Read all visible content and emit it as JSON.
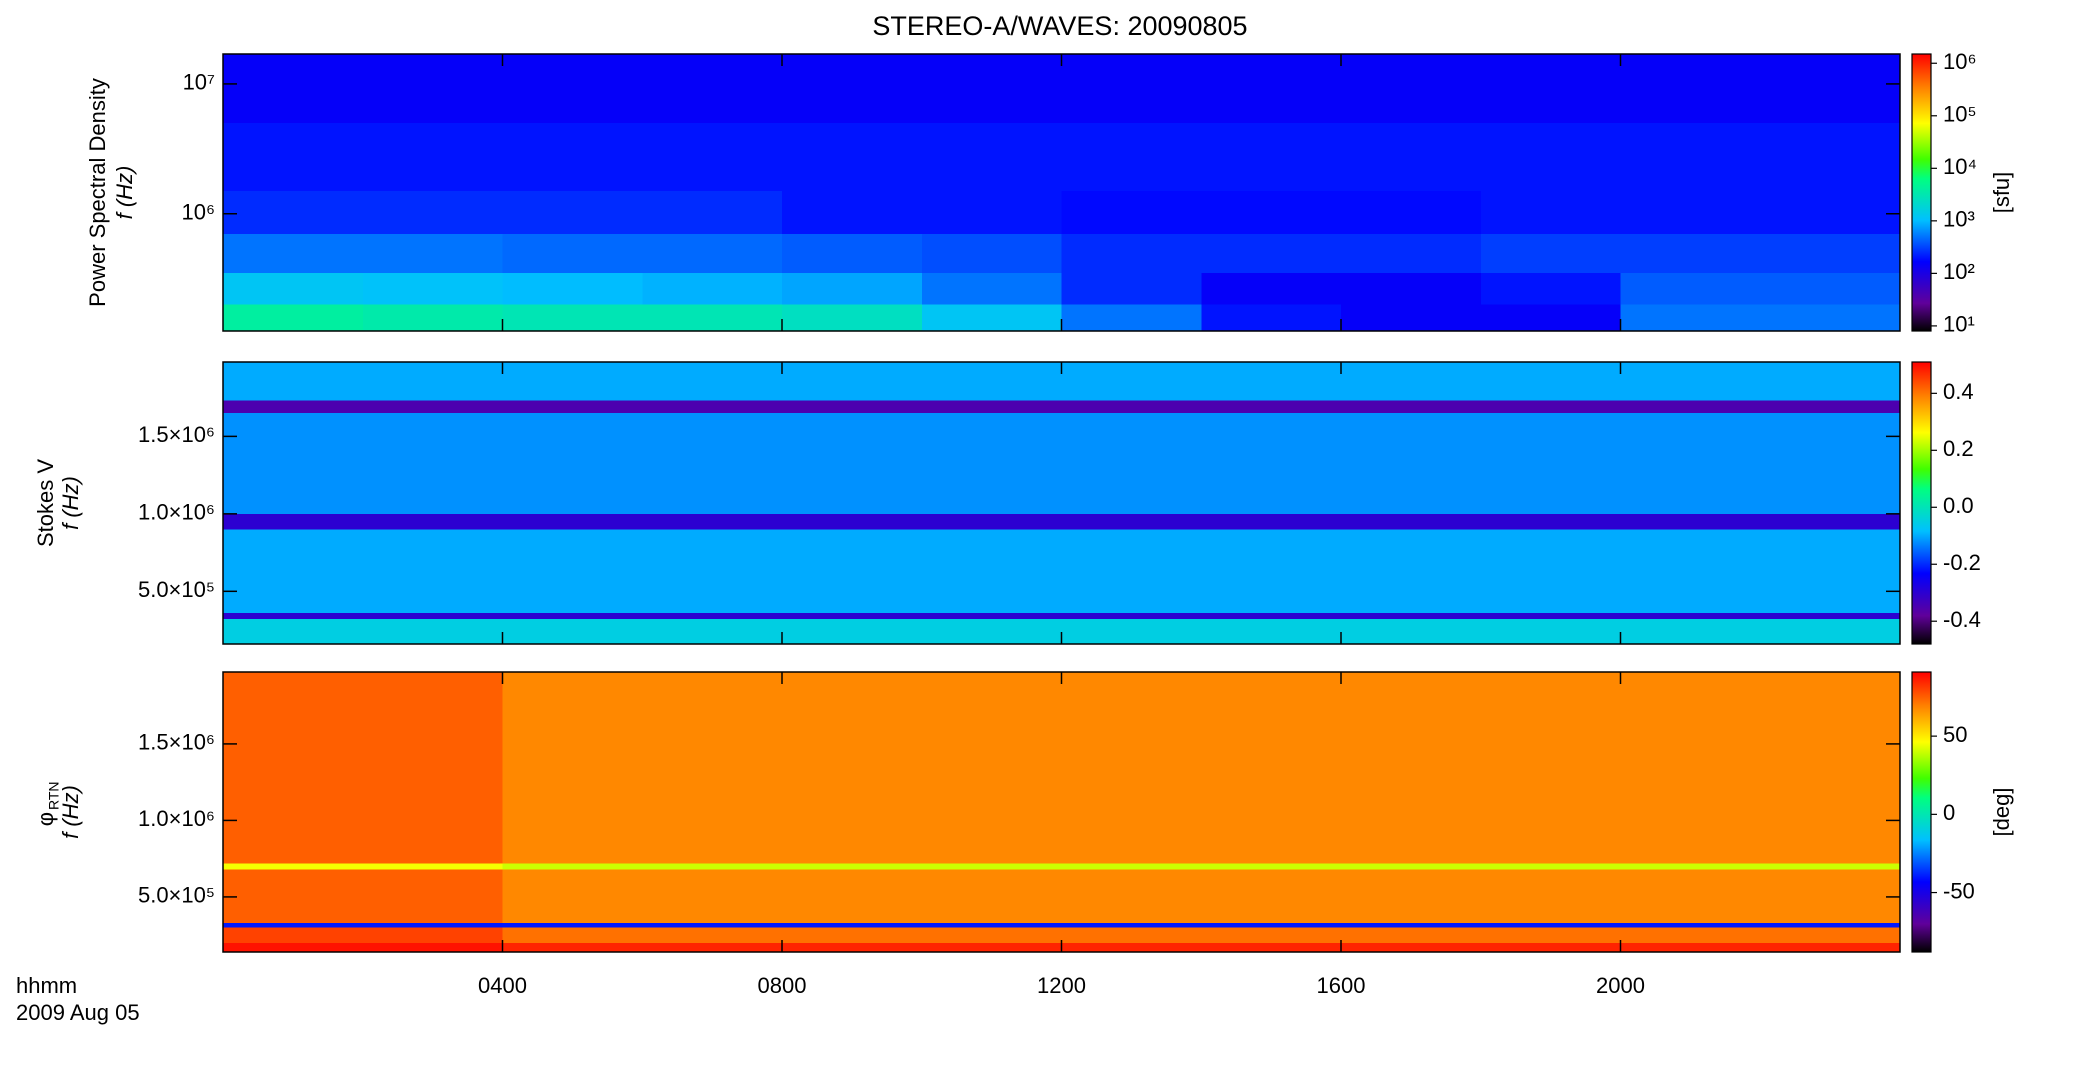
{
  "chart_data": [
    {
      "type": "heatmap",
      "title": "STEREO-A/WAVES: 20090805",
      "ylabel": "Power Spectral Density",
      "ylabel2": "f (Hz)",
      "ylog": true,
      "ylim": [
        125000,
        17000000
      ],
      "yticks": [
        {
          "value": 1000000,
          "label": "10⁶"
        },
        {
          "value": 10000000,
          "label": "10⁷"
        }
      ],
      "x_edges": [
        0,
        2,
        4,
        6,
        8,
        10,
        12,
        14,
        16,
        18,
        20,
        22,
        24
      ],
      "y_edges": [
        125000,
        200000,
        350000,
        700000,
        1500000,
        5000000,
        17000000
      ],
      "z": [
        [
          4000,
          3500,
          3000,
          3000,
          2500,
          1200,
          500,
          200,
          150,
          150,
          500,
          500
        ],
        [
          1200,
          1100,
          1000,
          900,
          800,
          500,
          250,
          150,
          150,
          200,
          400,
          400
        ],
        [
          500,
          500,
          450,
          450,
          400,
          350,
          250,
          250,
          250,
          300,
          300,
          300
        ],
        [
          250,
          250,
          250,
          250,
          200,
          200,
          180,
          180,
          180,
          200,
          200,
          200
        ],
        [
          200,
          200,
          200,
          200,
          200,
          200,
          200,
          200,
          200,
          200,
          200,
          200
        ],
        [
          150,
          150,
          150,
          150,
          150,
          150,
          150,
          150,
          150,
          150,
          150,
          150
        ]
      ],
      "colormap": "rainbow",
      "clog": true,
      "clim": [
        8,
        1500000
      ],
      "cticks": [
        {
          "value": 10,
          "label": "10¹"
        },
        {
          "value": 100,
          "label": "10²"
        },
        {
          "value": 1000,
          "label": "10³"
        },
        {
          "value": 10000,
          "label": "10⁴"
        },
        {
          "value": 100000,
          "label": "10⁵"
        },
        {
          "value": 1000000,
          "label": "10⁶"
        }
      ],
      "clabel": "[sfu]"
    },
    {
      "type": "heatmap",
      "ylabel": "Stokes V",
      "ylabel2": "f (Hz)",
      "ylog": false,
      "ylim": [
        160000,
        1980000
      ],
      "yticks": [
        {
          "value": 500000,
          "label": "5.0×10⁵"
        },
        {
          "value": 1000000,
          "label": "1.0×10⁶"
        },
        {
          "value": 1500000,
          "label": "1.5×10⁶"
        }
      ],
      "x_edges": [
        0,
        24
      ],
      "y_edges": [
        160000,
        320000,
        360000,
        900000,
        1000000,
        1650000,
        1730000,
        1980000
      ],
      "z": [
        [
          -0.05
        ],
        [
          -0.3
        ],
        [
          -0.1
        ],
        [
          -0.3
        ],
        [
          -0.12
        ],
        [
          -0.35
        ],
        [
          -0.1
        ]
      ],
      "colormap": "rainbow",
      "clog": false,
      "clim": [
        -0.48,
        0.51
      ],
      "cticks": [
        -0.4,
        -0.2,
        {
          "value": 0,
          "label": "0.0"
        },
        0.2,
        0.4
      ]
    },
    {
      "type": "heatmap",
      "ylabel": "φ",
      "ylabel_sub": "RTN",
      "ylabel2": "f (Hz)",
      "ylog": false,
      "ylim": [
        140000,
        1970000
      ],
      "yticks": [
        {
          "value": 500000,
          "label": "5.0×10⁵"
        },
        {
          "value": 1000000,
          "label": "1.0×10⁶"
        },
        {
          "value": 1500000,
          "label": "1.5×10⁶"
        }
      ],
      "x_edges": [
        0,
        4,
        24
      ],
      "y_edges": [
        140000,
        200000,
        300000,
        330000,
        680000,
        720000,
        1970000
      ],
      "z": [
        [
          88,
          85
        ],
        [
          80,
          72
        ],
        [
          -40,
          -40
        ],
        [
          75,
          68
        ],
        [
          45,
          40
        ],
        [
          75,
          68
        ]
      ],
      "colormap": "rainbow",
      "clog": false,
      "clim": [
        -88,
        91
      ],
      "cticks": [
        -50,
        0,
        50
      ],
      "clabel": "[deg]",
      "xlim": [
        0,
        24
      ],
      "xticks": [
        {
          "value": 4,
          "label": "0400"
        },
        {
          "value": 8,
          "label": "0800"
        },
        {
          "value": 12,
          "label": "1200"
        },
        {
          "value": 16,
          "label": "1600"
        },
        {
          "value": 20,
          "label": "2000"
        }
      ],
      "xlabel": "hhmm",
      "date": "2009 Aug 05"
    }
  ]
}
